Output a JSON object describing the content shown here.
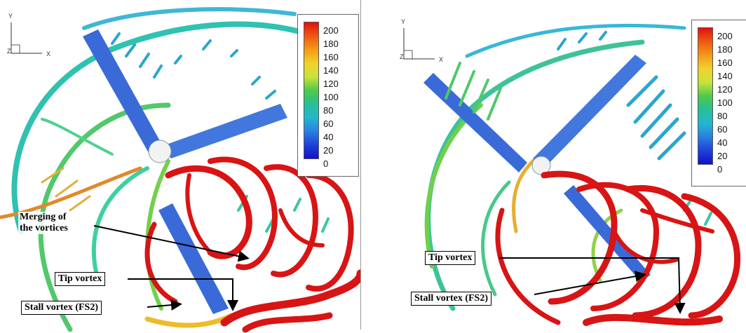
{
  "axes": {
    "y_label": "Y",
    "x_label": "X",
    "z_label": "Z"
  },
  "colorbar": {
    "ticks": [
      "200",
      "180",
      "160",
      "140",
      "120",
      "100",
      "80",
      "60",
      "40",
      "20",
      "0"
    ]
  },
  "left_panel": {
    "annotations": {
      "merging_line1": "Merging of",
      "merging_line2": "the vortices",
      "tip_vortex": "Tip vortex",
      "stall_vortex": "Stall vortex (FS2)"
    }
  },
  "right_panel": {
    "annotations": {
      "tip_vortex": "Tip vortex",
      "stall_vortex": "Stall vortex (FS2)"
    }
  },
  "colors": {
    "blade_blue": "#3a6ad8",
    "tip_vortex_cyan": "#2fc2b0",
    "wake_red": "#d81414",
    "green": "#5fcf4a"
  }
}
